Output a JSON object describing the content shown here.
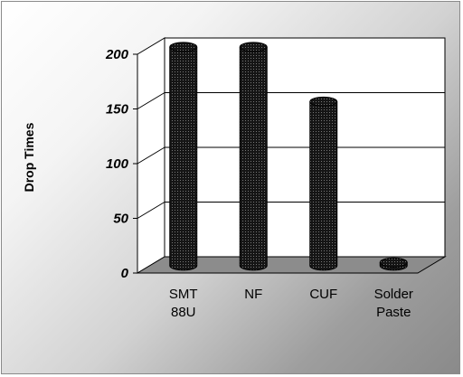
{
  "chart_data": {
    "type": "bar",
    "title": "",
    "xlabel": "",
    "ylabel": "Drop Times",
    "categories": [
      [
        "SMT",
        "88U"
      ],
      [
        "NF"
      ],
      [
        "CUF"
      ],
      [
        "Solder",
        "Paste"
      ]
    ],
    "values": [
      200,
      200,
      150,
      3
    ],
    "ylim": [
      0,
      200
    ],
    "yticks": [
      "0",
      "50",
      "100",
      "150",
      "200"
    ],
    "grid": true,
    "legend": "none",
    "colors": {
      "bar": "#1a1a1a",
      "floor": "#8c8c8c",
      "wall": "#ffffff",
      "gridline": "#000000"
    }
  }
}
